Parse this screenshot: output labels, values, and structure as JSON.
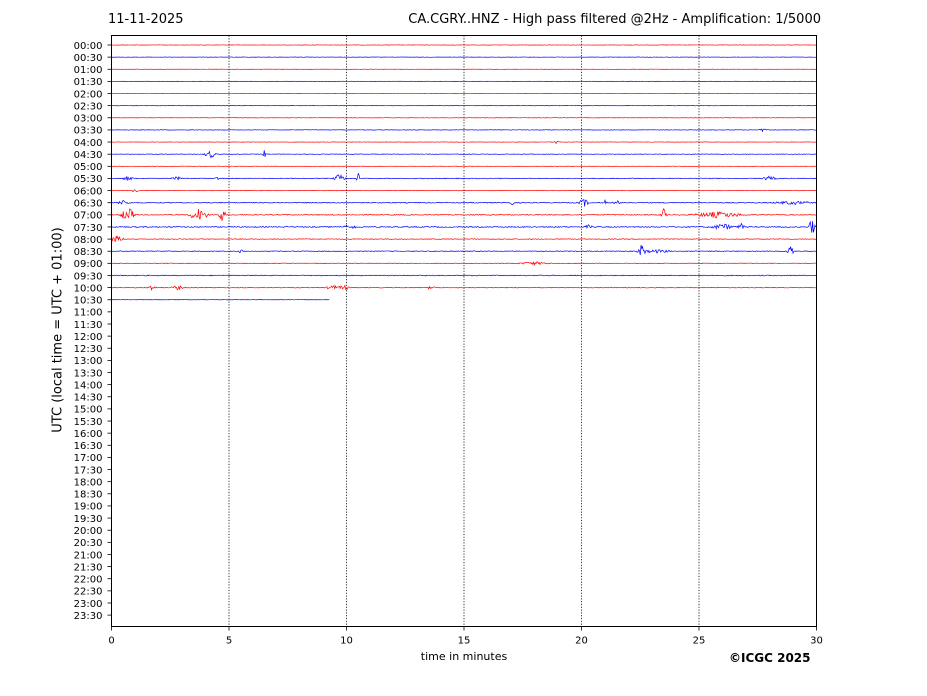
{
  "header": {
    "date": "11-11-2025",
    "title": "CA.CGRY..HNZ - High pass filtered @2Hz - Amplification: 1/5000"
  },
  "credit": "©ICGC 2025",
  "colors": {
    "odd_trace": "#ff0000",
    "even_trace": "#0000ff",
    "grid": "#000000"
  },
  "chart_data": {
    "type": "line",
    "subtype": "helicorder",
    "xlabel": "time in minutes",
    "ylabel": "UTC (local time = UTC + 01:00)",
    "xlim": [
      0,
      30
    ],
    "xticks": [
      0,
      5,
      10,
      15,
      20,
      25,
      30
    ],
    "vertical_gridlines": [
      5,
      10,
      15,
      20,
      25
    ],
    "rows": [
      "00:00",
      "00:30",
      "01:00",
      "01:30",
      "02:00",
      "02:30",
      "03:00",
      "03:30",
      "04:00",
      "04:30",
      "05:00",
      "05:30",
      "06:00",
      "06:30",
      "07:00",
      "07:30",
      "08:00",
      "08:30",
      "09:00",
      "09:30",
      "10:00",
      "10:30",
      "11:00",
      "11:30",
      "12:00",
      "12:30",
      "13:00",
      "13:30",
      "14:00",
      "14:30",
      "15:00",
      "15:30",
      "16:00",
      "16:30",
      "17:00",
      "17:30",
      "18:00",
      "18:30",
      "19:00",
      "19:30",
      "20:00",
      "20:30",
      "21:00",
      "21:30",
      "22:00",
      "22:30",
      "23:00",
      "23:30"
    ],
    "series": [
      {
        "row": "00:00",
        "color": "red",
        "end_minute": 30,
        "noise": 0.3,
        "events": []
      },
      {
        "row": "00:30",
        "color": "blue",
        "end_minute": 30,
        "noise": 0.3,
        "events": []
      },
      {
        "row": "01:00",
        "color": "red",
        "end_minute": 30,
        "noise": 0.3,
        "events": []
      },
      {
        "row": "01:30",
        "color": "blue",
        "end_minute": 30,
        "noise": 0.3,
        "events": []
      },
      {
        "row": "02:00",
        "color": "red",
        "end_minute": 30,
        "noise": 0.3,
        "events": []
      },
      {
        "row": "02:30",
        "color": "blue",
        "end_minute": 30,
        "noise": 0.3,
        "events": []
      },
      {
        "row": "03:00",
        "color": "red",
        "end_minute": 30,
        "noise": 0.3,
        "events": []
      },
      {
        "row": "03:30",
        "color": "blue",
        "end_minute": 30,
        "noise": 0.4,
        "events": [
          {
            "t": 27.7,
            "amp": 1.5,
            "dur": 0.2
          }
        ]
      },
      {
        "row": "04:00",
        "color": "red",
        "end_minute": 30,
        "noise": 0.3,
        "events": [
          {
            "t": 18.95,
            "amp": 5,
            "dur": 0.12
          }
        ]
      },
      {
        "row": "04:30",
        "color": "blue",
        "end_minute": 30,
        "noise": 0.4,
        "events": [
          {
            "t": 4.2,
            "amp": 4,
            "dur": 0.3
          },
          {
            "t": 6.5,
            "amp": 4,
            "dur": 0.1
          }
        ]
      },
      {
        "row": "05:00",
        "color": "red",
        "end_minute": 30,
        "noise": 0.3,
        "events": []
      },
      {
        "row": "05:30",
        "color": "blue",
        "end_minute": 30,
        "noise": 0.6,
        "events": [
          {
            "t": 0.7,
            "amp": 2,
            "dur": 0.3
          },
          {
            "t": 2.8,
            "amp": 1.5,
            "dur": 0.3
          },
          {
            "t": 4.5,
            "amp": 2,
            "dur": 0.1
          },
          {
            "t": 9.7,
            "amp": 4,
            "dur": 0.3
          },
          {
            "t": 10.5,
            "amp": 5,
            "dur": 0.1
          },
          {
            "t": 28.0,
            "amp": 2,
            "dur": 0.4
          }
        ]
      },
      {
        "row": "06:00",
        "color": "red",
        "end_minute": 30,
        "noise": 0.4,
        "events": [
          {
            "t": 1.0,
            "amp": 1.5,
            "dur": 0.2
          }
        ]
      },
      {
        "row": "06:30",
        "color": "blue",
        "end_minute": 30,
        "noise": 0.7,
        "events": [
          {
            "t": 0.5,
            "amp": 2,
            "dur": 0.4
          },
          {
            "t": 17.05,
            "amp": 3,
            "dur": 0.1
          },
          {
            "t": 20.1,
            "amp": 4,
            "dur": 0.25
          },
          {
            "t": 21.0,
            "amp": 2.5,
            "dur": 0.1
          },
          {
            "t": 21.5,
            "amp": 2,
            "dur": 0.2
          },
          {
            "t": 29.0,
            "amp": 1.5,
            "dur": 1.0
          }
        ]
      },
      {
        "row": "07:00",
        "color": "red",
        "end_minute": 30,
        "noise": 0.7,
        "events": [
          {
            "t": 0.7,
            "amp": 7,
            "dur": 0.4
          },
          {
            "t": 3.7,
            "amp": 6,
            "dur": 0.5
          },
          {
            "t": 4.7,
            "amp": 6,
            "dur": 0.2
          },
          {
            "t": 23.5,
            "amp": 6,
            "dur": 0.15
          },
          {
            "t": 25.8,
            "amp": 3,
            "dur": 1.3
          }
        ]
      },
      {
        "row": "07:30",
        "color": "blue",
        "end_minute": 30,
        "noise": 0.8,
        "events": [
          {
            "t": 9.95,
            "amp": 7,
            "dur": 0.1
          },
          {
            "t": 10.3,
            "amp": 5,
            "dur": 0.1
          },
          {
            "t": 20.3,
            "amp": 2,
            "dur": 0.2
          },
          {
            "t": 26.0,
            "amp": 3,
            "dur": 0.6
          },
          {
            "t": 26.8,
            "amp": 3,
            "dur": 0.2
          },
          {
            "t": 29.8,
            "amp": 8,
            "dur": 0.2
          }
        ]
      },
      {
        "row": "08:00",
        "color": "red",
        "end_minute": 30,
        "noise": 0.6,
        "events": [
          {
            "t": 0.2,
            "amp": 3,
            "dur": 0.4
          }
        ]
      },
      {
        "row": "08:30",
        "color": "blue",
        "end_minute": 30,
        "noise": 0.6,
        "events": [
          {
            "t": 5.5,
            "amp": 2,
            "dur": 0.1
          },
          {
            "t": 22.55,
            "amp": 7,
            "dur": 0.2
          },
          {
            "t": 23.2,
            "amp": 1.5,
            "dur": 0.8
          },
          {
            "t": 28.9,
            "amp": 6,
            "dur": 0.2
          }
        ]
      },
      {
        "row": "09:00",
        "color": "red",
        "end_minute": 30,
        "noise": 0.5,
        "events": [
          {
            "t": 18.0,
            "amp": 1.5,
            "dur": 0.8
          }
        ]
      },
      {
        "row": "09:30",
        "color": "blue",
        "end_minute": 30,
        "noise": 0.7,
        "events": []
      },
      {
        "row": "10:00",
        "color": "red",
        "end_minute": 30,
        "noise": 0.6,
        "events": [
          {
            "t": 1.7,
            "amp": 2.5,
            "dur": 0.2
          },
          {
            "t": 2.8,
            "amp": 2,
            "dur": 0.3
          },
          {
            "t": 9.4,
            "amp": 2.5,
            "dur": 0.3
          },
          {
            "t": 9.9,
            "amp": 2.5,
            "dur": 0.3
          },
          {
            "t": 13.6,
            "amp": 2,
            "dur": 0.2
          }
        ]
      },
      {
        "row": "10:30",
        "color": "blue",
        "end_minute": 9.27,
        "noise": 0.2,
        "events": []
      }
    ]
  }
}
